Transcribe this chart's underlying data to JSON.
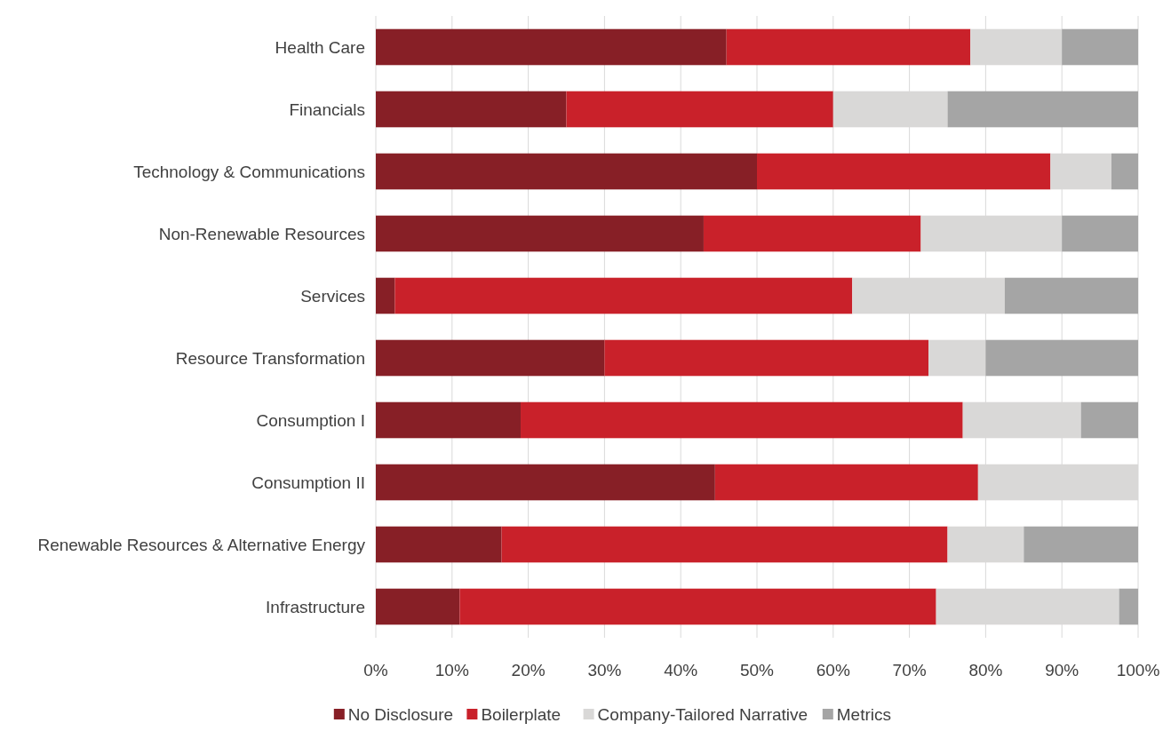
{
  "chart_data": {
    "type": "bar",
    "orientation": "horizontal",
    "stacked": true,
    "categories": [
      "Health Care",
      "Financials",
      "Technology & Communications",
      "Non-Renewable Resources",
      "Services",
      "Resource Transformation",
      "Consumption I",
      "Consumption II",
      "Renewable Resources & Alternative Energy",
      "Infrastructure"
    ],
    "series": [
      {
        "name": "No Disclosure",
        "color": "#871f26",
        "values": [
          46,
          25,
          50,
          43,
          2.5,
          30,
          19,
          44.5,
          16.5,
          11
        ]
      },
      {
        "name": "Boilerplate",
        "color": "#c9212a",
        "values": [
          32,
          35,
          38.5,
          28.5,
          60,
          42.5,
          58,
          34.5,
          58.5,
          62.5
        ]
      },
      {
        "name": "Company-Tailored Narrative",
        "color": "#d9d8d7",
        "values": [
          12,
          15,
          8,
          18.5,
          20,
          7.5,
          15.5,
          21,
          10,
          24
        ]
      },
      {
        "name": "Metrics",
        "color": "#a5a5a5",
        "values": [
          10,
          25,
          3.5,
          10,
          17.5,
          20,
          7.5,
          0,
          15,
          2.5
        ]
      }
    ],
    "xlim": [
      0,
      100
    ],
    "xticks": [
      {
        "value": 0,
        "label": "0%"
      },
      {
        "value": 10,
        "label": "10%"
      },
      {
        "value": 20,
        "label": "20%"
      },
      {
        "value": 30,
        "label": "30%"
      },
      {
        "value": 40,
        "label": "40%"
      },
      {
        "value": 50,
        "label": "50%"
      },
      {
        "value": 60,
        "label": "60%"
      },
      {
        "value": 70,
        "label": "70%"
      },
      {
        "value": 80,
        "label": "80%"
      },
      {
        "value": 90,
        "label": "90%"
      },
      {
        "value": 100,
        "label": "100%"
      }
    ],
    "grid": "x",
    "legend": "bottom"
  }
}
